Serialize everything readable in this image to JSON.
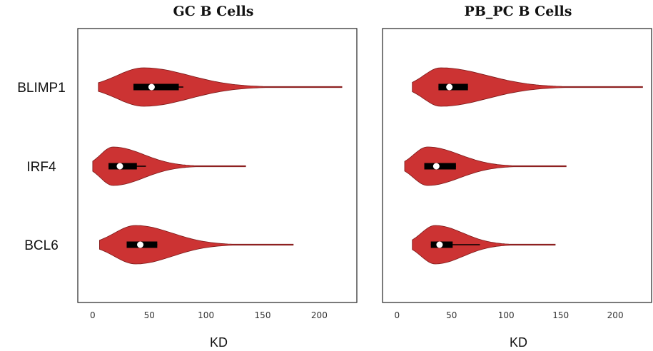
{
  "chart_data": [
    {
      "type": "violin",
      "title": "GC B Cells",
      "xlabel": "KD",
      "xlim": [
        -10,
        230
      ],
      "xticks": [
        0,
        50,
        100,
        150,
        200
      ],
      "categories": [
        "BLIMP1",
        "IRF4",
        "BCL6"
      ],
      "color": "#cc3333",
      "grid": false,
      "violins": [
        {
          "category": "BLIMP1",
          "min": 5,
          "q1": 36,
          "median": 52,
          "q3": 76,
          "whisker_high": 80,
          "max": 220,
          "mode": 45
        },
        {
          "category": "IRF4",
          "min": 0,
          "q1": 14,
          "median": 24,
          "q3": 39,
          "whisker_high": 47,
          "max": 135,
          "mode": 18
        },
        {
          "category": "BCL6",
          "min": 6,
          "q1": 30,
          "median": 42,
          "q3": 57,
          "whisker_high": 57,
          "max": 177,
          "mode": 38
        }
      ]
    },
    {
      "type": "violin",
      "title": "PB_PC B Cells",
      "xlabel": "KD",
      "xlim": [
        -10,
        230
      ],
      "xticks": [
        0,
        50,
        100,
        150,
        200
      ],
      "categories": [
        "BLIMP1",
        "IRF4",
        "BCL6"
      ],
      "color": "#cc3333",
      "grid": false,
      "violins": [
        {
          "category": "BLIMP1",
          "min": 14,
          "q1": 38,
          "median": 48,
          "q3": 65,
          "whisker_high": 65,
          "max": 225,
          "mode": 40
        },
        {
          "category": "IRF4",
          "min": 7,
          "q1": 25,
          "median": 36,
          "q3": 54,
          "whisker_high": 54,
          "max": 155,
          "mode": 28
        },
        {
          "category": "BCL6",
          "min": 14,
          "q1": 31,
          "median": 39,
          "q3": 51,
          "whisker_high": 76,
          "max": 145,
          "mode": 35
        }
      ]
    }
  ]
}
